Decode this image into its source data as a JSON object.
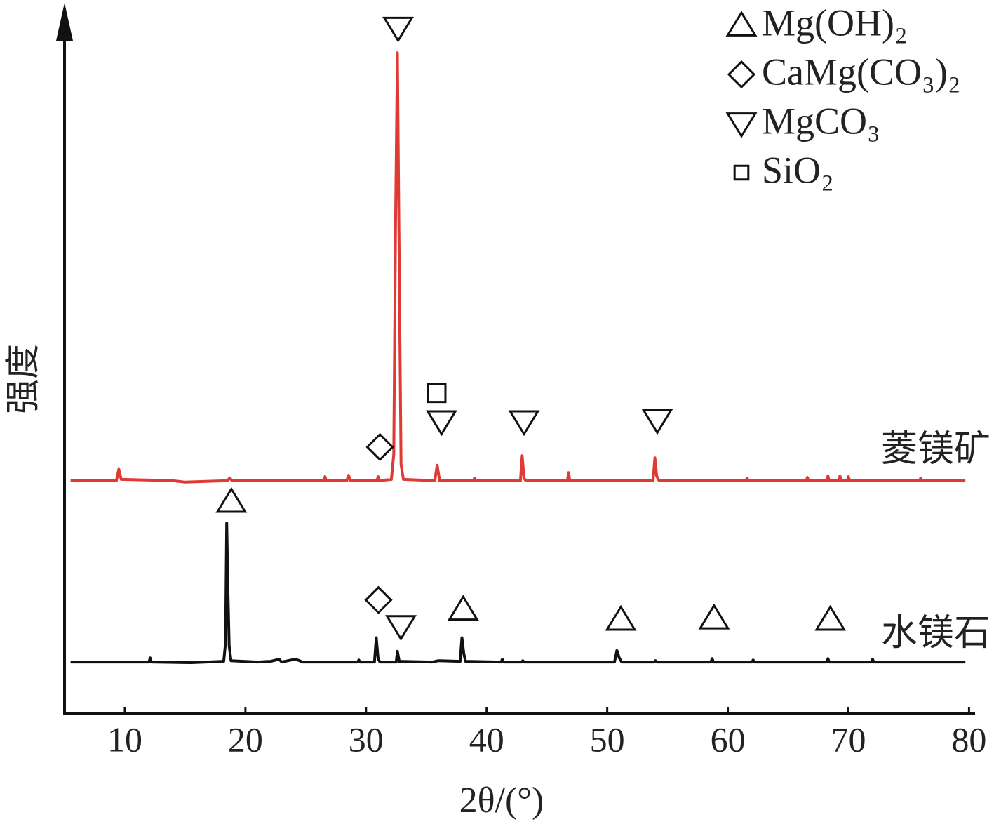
{
  "chart_data": {
    "type": "line",
    "x_label": "2θ/(°)",
    "y_label": "强度",
    "xlim": [
      5,
      80.5
    ],
    "ylim": [
      0,
      100
    ],
    "xticks": [
      10,
      20,
      30,
      40,
      50,
      60,
      70,
      80
    ],
    "legend": [
      {
        "symbol": "up-triangle",
        "label": "Mg(OH)₂"
      },
      {
        "symbol": "diamond",
        "label": "CaMg(CO₃)₂"
      },
      {
        "symbol": "down-triangle",
        "label": "MgCO₃"
      },
      {
        "symbol": "square",
        "label": "SiO₂"
      }
    ],
    "series": [
      {
        "name": "菱镁矿",
        "color": "#e03a35",
        "x": [
          5.5,
          9.3,
          9.5,
          9.7,
          14,
          15,
          18.5,
          18.7,
          18.9,
          26.5,
          26.6,
          26.7,
          28.4,
          28.55,
          28.7,
          30.9,
          31.0,
          31.1,
          32.1,
          32.3,
          32.45,
          32.6,
          32.75,
          32.9,
          33.1,
          35.7,
          35.9,
          36.1,
          38.9,
          39.0,
          39.1,
          42.8,
          42.95,
          43.1,
          43.25,
          46.7,
          46.8,
          46.9,
          53.8,
          53.95,
          54.1,
          54.3,
          61.5,
          61.6,
          61.7,
          66.5,
          66.6,
          66.7,
          68.2,
          68.3,
          68.4,
          69.2,
          69.3,
          69.4,
          69.9,
          70.0,
          70.1,
          75.9,
          76.0,
          76.1,
          79.7
        ],
        "values": [
          34.6,
          34.6,
          36.3,
          34.8,
          34.6,
          34.4,
          34.6,
          35.0,
          34.6,
          34.6,
          35.2,
          34.6,
          34.6,
          35.4,
          34.6,
          34.6,
          35.2,
          34.6,
          34.8,
          38.5,
          73,
          98.1,
          67,
          37,
          34.8,
          34.6,
          36.9,
          34.6,
          34.6,
          35.0,
          34.6,
          34.6,
          38.3,
          35.0,
          34.6,
          34.6,
          35.8,
          34.6,
          34.6,
          38.0,
          35.3,
          34.6,
          34.6,
          35.0,
          34.6,
          34.6,
          35.1,
          34.6,
          34.6,
          35.3,
          34.6,
          34.6,
          35.3,
          34.6,
          34.6,
          35.2,
          34.6,
          34.6,
          35.0,
          34.6,
          34.6
        ]
      },
      {
        "name": "水镁石",
        "color": "#111111",
        "x": [
          5.5,
          12.0,
          12.1,
          12.2,
          15.5,
          18.2,
          18.35,
          18.45,
          18.55,
          18.65,
          18.8,
          21,
          22.1,
          22.8,
          23,
          24.1,
          24.5,
          24.7,
          29.3,
          29.4,
          29.5,
          30.7,
          30.85,
          31.0,
          31.15,
          32.5,
          32.6,
          32.75,
          35.5,
          36,
          37.8,
          37.95,
          38.1,
          38.25,
          41.2,
          41.3,
          41.4,
          42.9,
          43,
          43.1,
          50.6,
          50.8,
          51.0,
          51.2,
          53.9,
          54,
          54.1,
          58.6,
          58.7,
          58.8,
          62.0,
          62.1,
          62.2,
          68.2,
          68.3,
          68.4,
          71.9,
          72.0,
          72.1,
          79.7
        ],
        "values": [
          7.7,
          7.7,
          8.3,
          7.7,
          7.6,
          7.8,
          10.5,
          28.3,
          18,
          10.1,
          7.9,
          7.7,
          7.8,
          8.1,
          7.7,
          8.1,
          7.9,
          7.7,
          7.7,
          8.0,
          7.7,
          7.7,
          11.3,
          8.2,
          7.7,
          7.7,
          9.3,
          7.8,
          7.7,
          7.9,
          7.8,
          11.3,
          9.0,
          7.8,
          7.7,
          8.1,
          7.7,
          7.7,
          7.9,
          7.7,
          7.7,
          9.4,
          8.3,
          7.7,
          7.7,
          7.9,
          7.7,
          7.7,
          8.2,
          7.7,
          7.7,
          8.0,
          7.7,
          7.7,
          8.2,
          7.7,
          7.7,
          8.1,
          7.7,
          7.7
        ]
      }
    ],
    "annotations": [
      {
        "phase": 2,
        "x": 32.66,
        "y": 101.8
      },
      {
        "phase": 1,
        "x": 31.15,
        "y": 39.6
      },
      {
        "phase": 3,
        "x": 35.85,
        "y": 47.6
      },
      {
        "phase": 2,
        "x": 36.26,
        "y": 43.4
      },
      {
        "phase": 2,
        "x": 43.1,
        "y": 43.4
      },
      {
        "phase": 2,
        "x": 54.15,
        "y": 43.6
      },
      {
        "phase": 0,
        "x": 18.83,
        "y": 31.5
      },
      {
        "phase": 1,
        "x": 31.03,
        "y": 16.9
      },
      {
        "phase": 2,
        "x": 32.89,
        "y": 13.0
      },
      {
        "phase": 0,
        "x": 38.06,
        "y": 15.5
      },
      {
        "phase": 0,
        "x": 51.13,
        "y": 14.0
      },
      {
        "phase": 0,
        "x": 58.86,
        "y": 14.2
      },
      {
        "phase": 0,
        "x": 68.5,
        "y": 14.0
      }
    ]
  }
}
